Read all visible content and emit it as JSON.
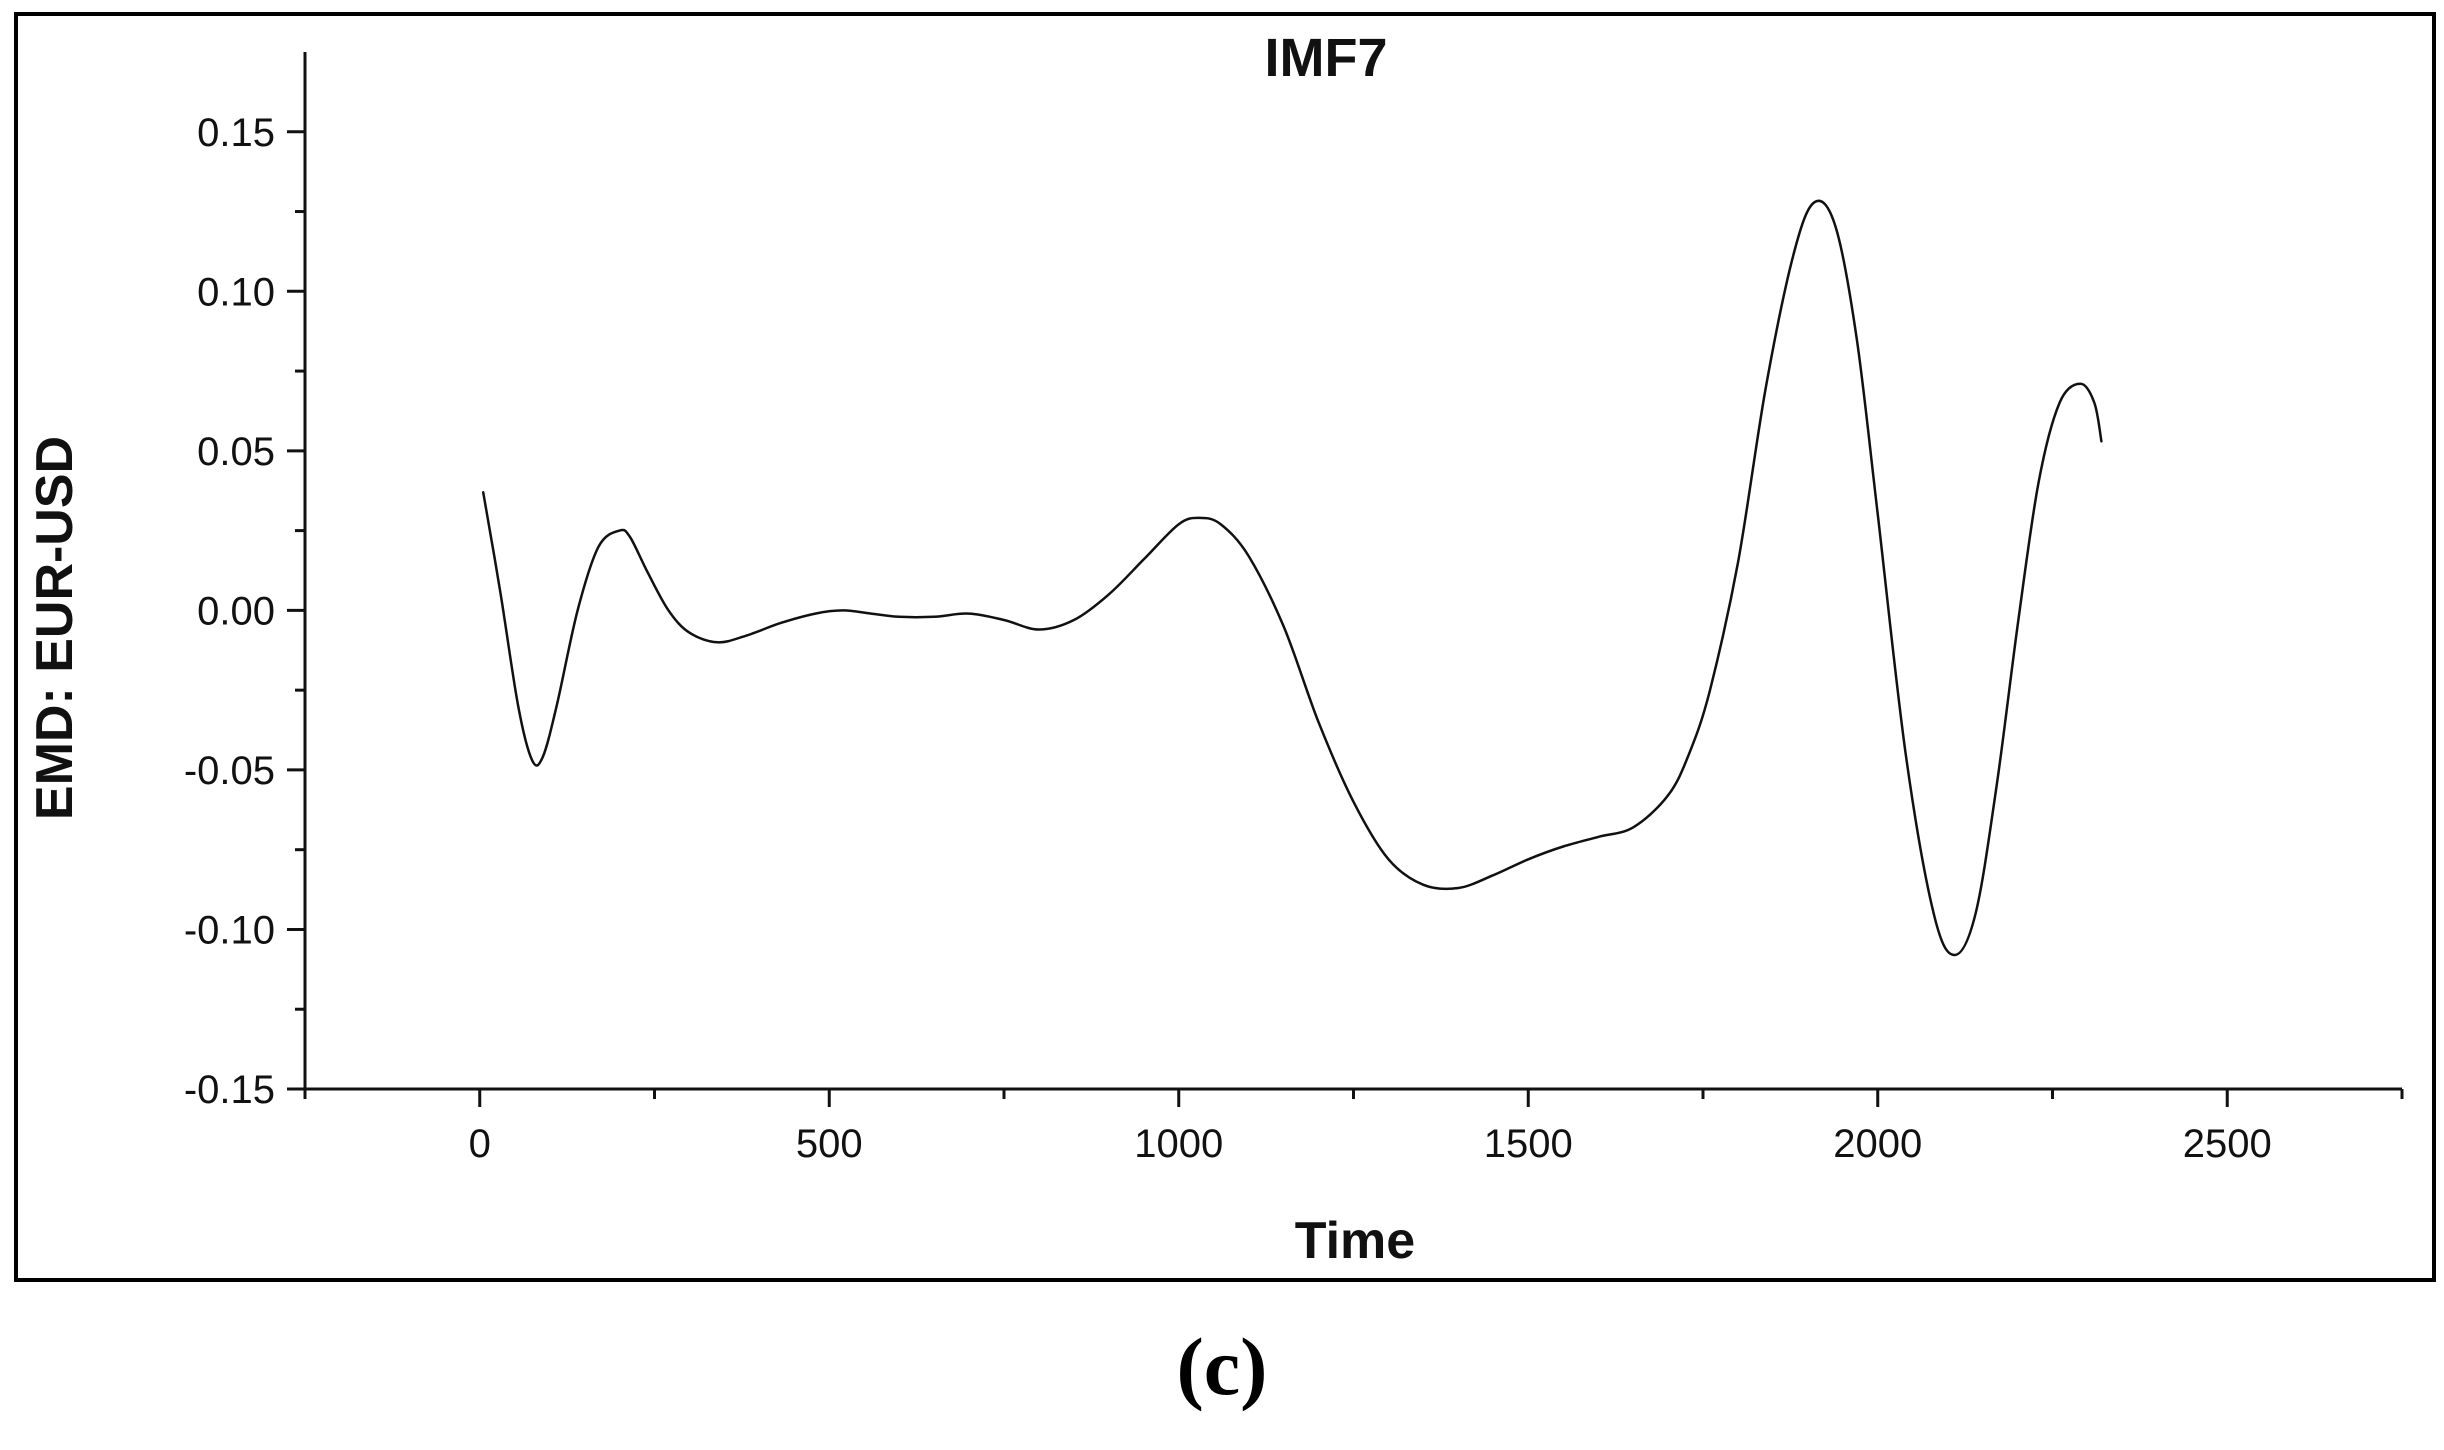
{
  "panel_label": "(c)",
  "colors": {
    "line": "#111111",
    "axis": "#111111",
    "frame": "#000000",
    "background": "#ffffff"
  },
  "chart_data": {
    "type": "line",
    "title": "IMF7",
    "xlabel": "Time",
    "ylabel": "EMD: EUR-USD",
    "xlim": [
      -250,
      2750
    ],
    "ylim": [
      -0.15,
      0.175
    ],
    "x_ticks": [
      0,
      500,
      1000,
      1500,
      2000,
      2500
    ],
    "x_tick_labels": [
      "0",
      "500",
      "1000",
      "1500",
      "2000",
      "2500"
    ],
    "y_ticks": [
      -0.15,
      -0.1,
      -0.05,
      0.0,
      0.05,
      0.1,
      0.15
    ],
    "y_tick_labels": [
      "-0.15",
      "-0.10",
      "-0.05",
      "0.00",
      "0.05",
      "0.10",
      "0.15"
    ],
    "grid": false,
    "legend": "none",
    "series": [
      {
        "x": [
          5,
          30,
          55,
          75,
          90,
          110,
          140,
          170,
          200,
          215,
          240,
          270,
          300,
          340,
          380,
          430,
          480,
          520,
          560,
          600,
          650,
          700,
          750,
          800,
          850,
          900,
          950,
          1000,
          1030,
          1060,
          1100,
          1150,
          1200,
          1250,
          1300,
          1350,
          1400,
          1450,
          1500,
          1550,
          1600,
          1650,
          1700,
          1730,
          1760,
          1800,
          1840,
          1880,
          1910,
          1940,
          1970,
          2000,
          2040,
          2080,
          2110,
          2140,
          2170,
          2200,
          2230,
          2260,
          2290,
          2310,
          2320
        ],
        "y": [
          0.037,
          0.005,
          -0.03,
          -0.047,
          -0.046,
          -0.03,
          0.0,
          0.02,
          0.025,
          0.023,
          0.012,
          0.0,
          -0.007,
          -0.01,
          -0.008,
          -0.004,
          -0.001,
          0.0,
          -0.001,
          -0.002,
          -0.002,
          -0.001,
          -0.003,
          -0.006,
          -0.003,
          0.005,
          0.016,
          0.027,
          0.029,
          0.027,
          0.017,
          -0.005,
          -0.035,
          -0.06,
          -0.078,
          -0.086,
          -0.087,
          -0.083,
          -0.078,
          -0.074,
          -0.071,
          -0.068,
          -0.058,
          -0.045,
          -0.025,
          0.015,
          0.07,
          0.112,
          0.128,
          0.12,
          0.085,
          0.03,
          -0.045,
          -0.095,
          -0.108,
          -0.095,
          -0.055,
          -0.005,
          0.04,
          0.065,
          0.071,
          0.065,
          0.053
        ]
      }
    ]
  }
}
